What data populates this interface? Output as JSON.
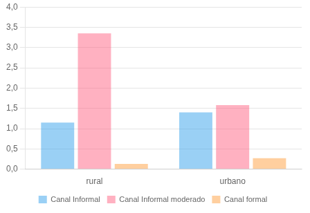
{
  "chart_data": {
    "type": "bar",
    "categories": [
      "rural",
      "urbano"
    ],
    "series": [
      {
        "name": "Canal Informal",
        "values": [
          1.15,
          1.4
        ]
      },
      {
        "name": "Canal Informal moderado",
        "values": [
          3.35,
          1.58
        ]
      },
      {
        "name": "Canal formal",
        "values": [
          0.13,
          0.27
        ]
      }
    ],
    "ylim": [
      0,
      4.0
    ],
    "yticks": [
      {
        "value": 0.0,
        "label": "0,0"
      },
      {
        "value": 0.5,
        "label": "0,5"
      },
      {
        "value": 1.0,
        "label": "1,0"
      },
      {
        "value": 1.5,
        "label": "1,5"
      },
      {
        "value": 2.0,
        "label": "2,0"
      },
      {
        "value": 2.5,
        "label": "2,5"
      },
      {
        "value": 3.0,
        "label": "3,0"
      },
      {
        "value": 3.5,
        "label": "3,5"
      },
      {
        "value": 4.0,
        "label": "4,0"
      }
    ],
    "grid": true,
    "legend": "bottom"
  }
}
